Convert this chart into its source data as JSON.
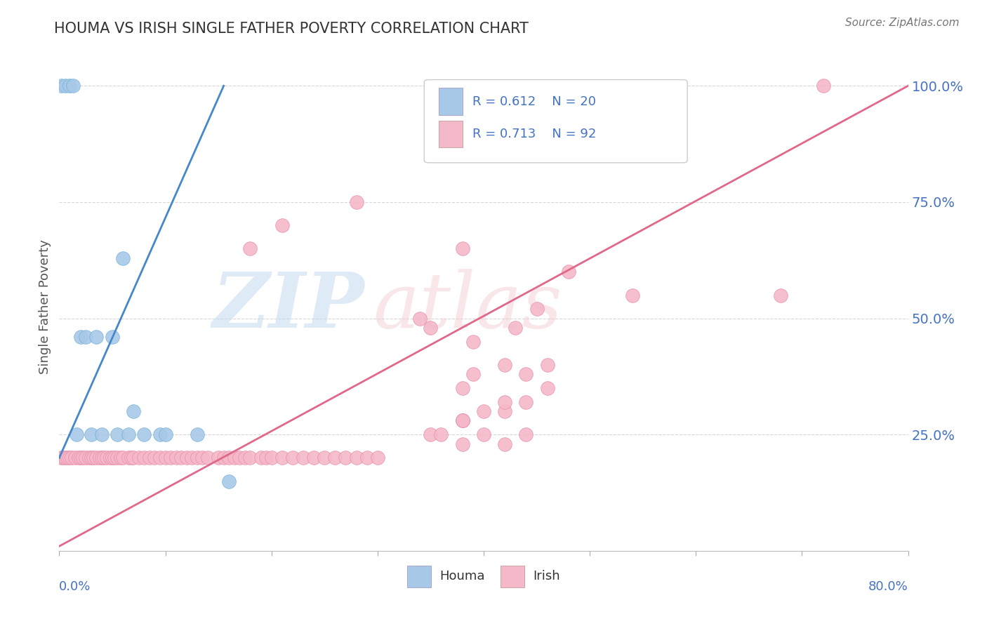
{
  "title": "HOUMA VS IRISH SINGLE FATHER POVERTY CORRELATION CHART",
  "source": "Source: ZipAtlas.com",
  "ylabel": "Single Father Poverty",
  "houma_R": 0.612,
  "houma_N": 20,
  "irish_R": 0.713,
  "irish_N": 92,
  "houma_color": "#a8c8e8",
  "houma_edge_color": "#6baed6",
  "irish_color": "#f4b8c8",
  "irish_edge_color": "#e888a8",
  "houma_line_color": "#4488cc",
  "irish_line_color": "#e06888",
  "background_color": "#ffffff",
  "tick_color": "#4472C4",
  "title_color": "#333333",
  "source_color": "#777777",
  "ylabel_color": "#555555",
  "xlim": [
    0.0,
    0.8
  ],
  "ylim": [
    0.0,
    1.05
  ],
  "houma_x": [
    0.002,
    0.006,
    0.01,
    0.013,
    0.016,
    0.02,
    0.025,
    0.03,
    0.035,
    0.04,
    0.05,
    0.055,
    0.06,
    0.065,
    0.07,
    0.08,
    0.095,
    0.1,
    0.13,
    0.16
  ],
  "houma_y": [
    1.0,
    1.0,
    1.0,
    1.0,
    0.25,
    0.46,
    0.46,
    0.25,
    0.46,
    0.25,
    0.46,
    0.25,
    0.63,
    0.25,
    0.3,
    0.25,
    0.25,
    0.25,
    0.25,
    0.15
  ],
  "houma_line_x0": 0.0,
  "houma_line_y0": 0.2,
  "houma_line_x1": 0.155,
  "houma_line_y1": 1.0,
  "irish_line_x0": 0.0,
  "irish_line_y0": 0.01,
  "irish_line_x1": 0.8,
  "irish_line_y1": 1.0,
  "irish_x": [
    0.002,
    0.004,
    0.006,
    0.008,
    0.01,
    0.012,
    0.015,
    0.018,
    0.02,
    0.022,
    0.025,
    0.028,
    0.03,
    0.032,
    0.035,
    0.038,
    0.04,
    0.042,
    0.045,
    0.048,
    0.05,
    0.052,
    0.055,
    0.058,
    0.06,
    0.065,
    0.068,
    0.07,
    0.075,
    0.08,
    0.085,
    0.09,
    0.095,
    0.1,
    0.105,
    0.11,
    0.115,
    0.12,
    0.125,
    0.13,
    0.135,
    0.14,
    0.15,
    0.155,
    0.16,
    0.165,
    0.17,
    0.175,
    0.18,
    0.19,
    0.195,
    0.2,
    0.21,
    0.22,
    0.23,
    0.24,
    0.25,
    0.26,
    0.27,
    0.28,
    0.29,
    0.3,
    0.18,
    0.21,
    0.28,
    0.38,
    0.48,
    0.34,
    0.35,
    0.39,
    0.43,
    0.45,
    0.39,
    0.42,
    0.54,
    0.38,
    0.44,
    0.46,
    0.68,
    0.72,
    0.44,
    0.38,
    0.42,
    0.46,
    0.35,
    0.38,
    0.4,
    0.42,
    0.36,
    0.38,
    0.4,
    0.38,
    0.42,
    0.44
  ],
  "irish_y": [
    0.2,
    0.2,
    0.2,
    0.2,
    0.2,
    0.2,
    0.2,
    0.2,
    0.2,
    0.2,
    0.2,
    0.2,
    0.2,
    0.2,
    0.2,
    0.2,
    0.2,
    0.2,
    0.2,
    0.2,
    0.2,
    0.2,
    0.2,
    0.2,
    0.2,
    0.2,
    0.2,
    0.2,
    0.2,
    0.2,
    0.2,
    0.2,
    0.2,
    0.2,
    0.2,
    0.2,
    0.2,
    0.2,
    0.2,
    0.2,
    0.2,
    0.2,
    0.2,
    0.2,
    0.2,
    0.2,
    0.2,
    0.2,
    0.2,
    0.2,
    0.2,
    0.2,
    0.2,
    0.2,
    0.2,
    0.2,
    0.2,
    0.2,
    0.2,
    0.2,
    0.2,
    0.2,
    0.65,
    0.7,
    0.75,
    0.65,
    0.6,
    0.5,
    0.48,
    0.45,
    0.48,
    0.52,
    0.38,
    0.4,
    0.55,
    0.35,
    0.38,
    0.4,
    0.55,
    1.0,
    0.32,
    0.28,
    0.3,
    0.35,
    0.25,
    0.28,
    0.3,
    0.32,
    0.25,
    0.28,
    0.25,
    0.23,
    0.23,
    0.25
  ]
}
